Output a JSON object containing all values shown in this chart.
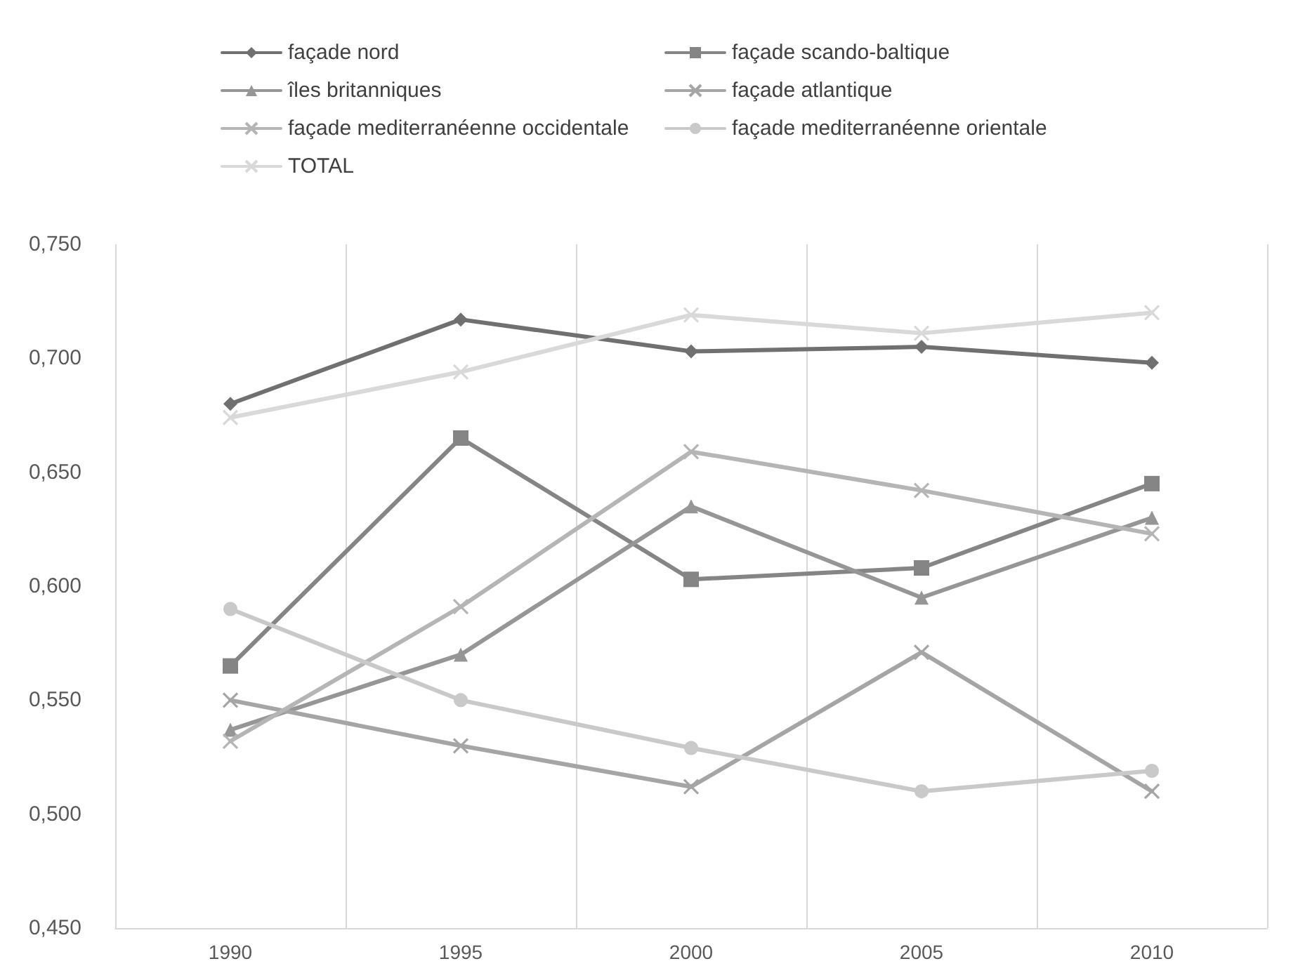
{
  "chart_data": {
    "type": "line",
    "categories": [
      "1990",
      "1995",
      "2000",
      "2005",
      "2010"
    ],
    "series": [
      {
        "name": "façade nord",
        "color": "#707070",
        "marker": "diamond",
        "values": [
          0.68,
          0.717,
          0.703,
          0.705,
          0.698
        ]
      },
      {
        "name": "façade scando-baltique",
        "color": "#858585",
        "marker": "square",
        "values": [
          0.565,
          0.665,
          0.603,
          0.608,
          0.645
        ]
      },
      {
        "name": "îles britanniques",
        "color": "#969696",
        "marker": "triangle",
        "values": [
          0.537,
          0.57,
          0.635,
          0.595,
          0.63
        ]
      },
      {
        "name": "façade atlantique",
        "color": "#a5a5a5",
        "marker": "cross",
        "values": [
          0.55,
          0.53,
          0.512,
          0.571,
          0.51
        ]
      },
      {
        "name": "façade mediterranéenne occidentale",
        "color": "#b5b5b5",
        "marker": "cross",
        "values": [
          0.532,
          0.591,
          0.659,
          0.642,
          0.623
        ]
      },
      {
        "name": "façade mediterranéenne orientale",
        "color": "#c9c9c9",
        "marker": "circle",
        "values": [
          0.59,
          0.55,
          0.529,
          0.51,
          0.519
        ]
      },
      {
        "name": "TOTAL",
        "color": "#d9d9d9",
        "marker": "cross",
        "values": [
          0.674,
          0.694,
          0.719,
          0.711,
          0.72
        ]
      }
    ],
    "ylim": [
      0.45,
      0.75
    ],
    "yticks": [
      {
        "value": 0.45,
        "label": "0,450"
      },
      {
        "value": 0.5,
        "label": "0,500"
      },
      {
        "value": 0.55,
        "label": "0,550"
      },
      {
        "value": 0.6,
        "label": "0,600"
      },
      {
        "value": 0.65,
        "label": "0,650"
      },
      {
        "value": 0.7,
        "label": "0,700"
      },
      {
        "value": 0.75,
        "label": "0,750"
      }
    ],
    "grid": "x",
    "legend": "top",
    "line_style": "solid"
  }
}
